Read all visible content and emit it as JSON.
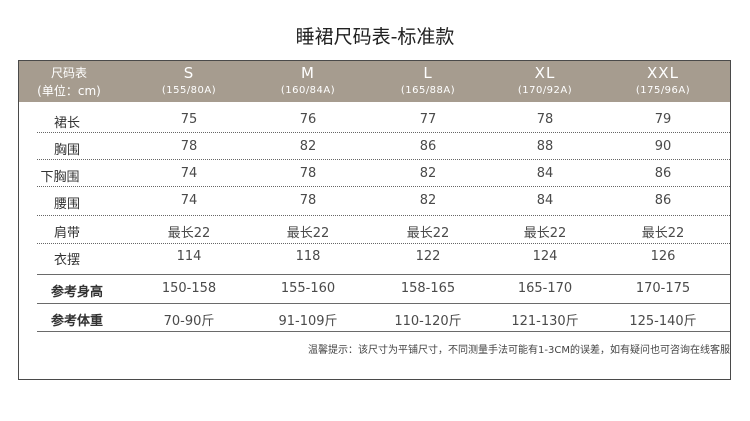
{
  "title": "睡裙尺码表-标准款",
  "header": {
    "label_line1": "尺码表",
    "label_line2": "(单位：cm)",
    "sizes": [
      {
        "size": "S",
        "spec": "(155/80A)"
      },
      {
        "size": "M",
        "spec": "(160/84A)"
      },
      {
        "size": "L",
        "spec": "(165/88A)"
      },
      {
        "size": "XL",
        "spec": "(170/92A)"
      },
      {
        "size": "XXL",
        "spec": "(175/96A)"
      }
    ]
  },
  "rows": [
    {
      "label": "裙长",
      "values": [
        "75",
        "76",
        "77",
        "78",
        "79"
      ]
    },
    {
      "label": "胸围",
      "values": [
        "78",
        "82",
        "86",
        "88",
        "90"
      ]
    },
    {
      "label": "下胸围",
      "values": [
        "74",
        "78",
        "82",
        "84",
        "86"
      ]
    },
    {
      "label": "腰围",
      "values": [
        "74",
        "78",
        "82",
        "84",
        "86"
      ]
    },
    {
      "label": "肩带",
      "values": [
        "最长22",
        "最长22",
        "最长22",
        "最长22",
        "最长22"
      ]
    },
    {
      "label": "衣摆",
      "values": [
        "114",
        "118",
        "122",
        "124",
        "126"
      ]
    },
    {
      "label": "参考身高",
      "values": [
        "150-158",
        "155-160",
        "158-165",
        "165-170",
        "170-175"
      ]
    },
    {
      "label": "参考体重",
      "values": [
        "70-90斤",
        "91-109斤",
        "110-120斤",
        "121-130斤",
        "125-140斤"
      ]
    }
  ],
  "note": "温馨提示：该尺寸为平铺尺寸，不同测量手法可能有1-3CM的误差，如有疑问也可咨询在线客服"
}
